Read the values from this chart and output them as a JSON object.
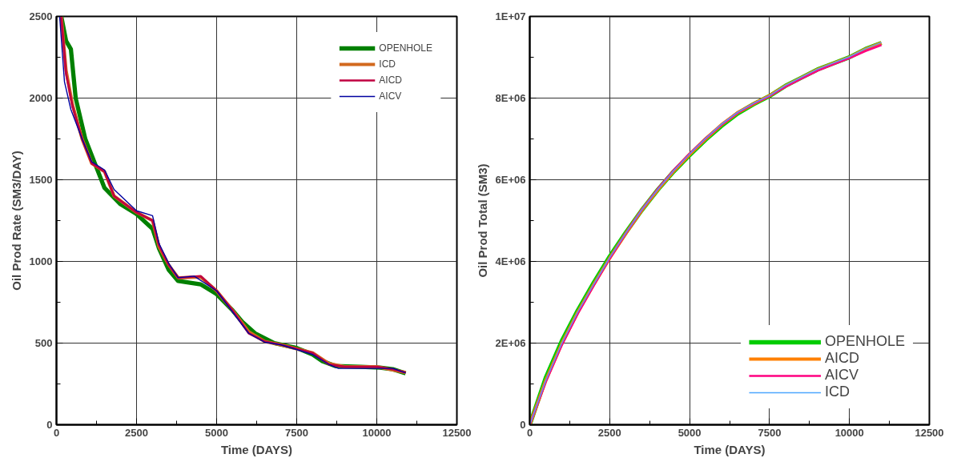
{
  "chart_data": [
    {
      "type": "line",
      "xlabel": "Time (DAYS)",
      "ylabel": "Oil Prod Rate (SM3/DAY)",
      "xlim": [
        0,
        12500
      ],
      "ylim": [
        0,
        2500
      ],
      "xticks": [
        0,
        2500,
        5000,
        7500,
        10000,
        12500
      ],
      "yticks": [
        0,
        500,
        1000,
        1500,
        2000,
        2500
      ],
      "grid": true,
      "legend": "top right",
      "line_style": "solid",
      "series": [
        {
          "name": "OPENHOLE",
          "color": "#008000",
          "x": [
            150,
            300,
            450,
            600,
            900,
            1200,
            1500,
            2000,
            2500,
            3000,
            3200,
            3500,
            3800,
            4500,
            5000,
            5500,
            5800,
            6200,
            6800,
            7500,
            8000,
            8300,
            8700,
            9500,
            10100,
            10500,
            10900
          ],
          "values": [
            2500,
            2350,
            2300,
            2000,
            1750,
            1600,
            1450,
            1350,
            1290,
            1200,
            1080,
            950,
            880,
            860,
            800,
            700,
            630,
            560,
            500,
            470,
            430,
            390,
            360,
            355,
            350,
            340,
            315
          ]
        },
        {
          "name": "ICD",
          "color": "#d2691e",
          "x": [
            150,
            300,
            500,
            800,
            1100,
            1500,
            1800,
            2500,
            3000,
            3200,
            3500,
            3800,
            4500,
            5000,
            5500,
            6000,
            6500,
            7000,
            8000,
            8500,
            9000,
            10000,
            10500,
            10900
          ],
          "values": [
            2500,
            2170,
            1960,
            1750,
            1600,
            1550,
            1400,
            1300,
            1250,
            1090,
            980,
            900,
            905,
            820,
            700,
            570,
            510,
            490,
            440,
            375,
            355,
            355,
            335,
            320
          ]
        },
        {
          "name": "AICD",
          "color": "#c00040",
          "x": [
            150,
            300,
            500,
            800,
            1100,
            1500,
            1800,
            2500,
            3000,
            3200,
            3500,
            3800,
            4500,
            5000,
            5500,
            6000,
            6500,
            7000,
            8000,
            8500,
            9000,
            10000,
            10500,
            10900
          ],
          "values": [
            2500,
            2150,
            1950,
            1750,
            1600,
            1550,
            1400,
            1300,
            1250,
            1100,
            980,
            900,
            910,
            820,
            700,
            560,
            510,
            490,
            440,
            370,
            355,
            355,
            340,
            320
          ]
        },
        {
          "name": "AICV",
          "color": "#0000a0",
          "x": [
            100,
            250,
            450,
            800,
            1100,
            1500,
            1800,
            2500,
            3000,
            3200,
            3500,
            3800,
            4300,
            5000,
            5500,
            6000,
            6500,
            7000,
            8000,
            8500,
            8800,
            10000,
            10500,
            10900
          ],
          "values": [
            2500,
            2100,
            1930,
            1750,
            1610,
            1560,
            1440,
            1310,
            1280,
            1110,
            990,
            900,
            910,
            820,
            690,
            560,
            505,
            490,
            430,
            370,
            345,
            345,
            345,
            318
          ]
        }
      ]
    },
    {
      "type": "line",
      "xlabel": "Time (DAYS)",
      "ylabel": "Oil Prod Total (SM3)",
      "xlim": [
        0,
        12500
      ],
      "ylim": [
        0,
        10000000
      ],
      "xticks": [
        0,
        2500,
        5000,
        7500,
        10000,
        12500
      ],
      "yticks": [
        0,
        {
          "value": 2000000,
          "label": "2E+06"
        },
        {
          "value": 4000000,
          "label": "4E+06"
        },
        {
          "value": 6000000,
          "label": "6E+06"
        },
        {
          "value": 8000000,
          "label": "8E+06"
        },
        {
          "value": 10000000,
          "label": "1E+07"
        }
      ],
      "grid": true,
      "legend": "bottom right",
      "line_style": "solid",
      "series": [
        {
          "name": "OPENHOLE",
          "color": "#00cc00",
          "x": [
            0,
            500,
            1000,
            1500,
            2000,
            2500,
            3000,
            3500,
            4000,
            4500,
            5000,
            5500,
            6000,
            6500,
            7000,
            7500,
            8000,
            8500,
            9000,
            9500,
            10000,
            10500,
            11000
          ],
          "values": [
            0,
            1150000,
            2050000,
            2800000,
            3480000,
            4120000,
            4700000,
            5250000,
            5750000,
            6200000,
            6600000,
            6980000,
            7320000,
            7620000,
            7850000,
            8050000,
            8300000,
            8500000,
            8700000,
            8850000,
            9000000,
            9200000,
            9350000
          ]
        },
        {
          "name": "AICD",
          "color": "#ff8000",
          "x": [
            0,
            500,
            1000,
            1500,
            2000,
            2500,
            3000,
            3500,
            4000,
            4500,
            5000,
            5500,
            6000,
            6500,
            7000,
            7500,
            8000,
            8500,
            9000,
            9500,
            10000,
            10500,
            11000
          ],
          "values": [
            0,
            1080000,
            1980000,
            2750000,
            3430000,
            4080000,
            4680000,
            5250000,
            5750000,
            6210000,
            6620000,
            7000000,
            7350000,
            7640000,
            7860000,
            8060000,
            8300000,
            8500000,
            8700000,
            8850000,
            9000000,
            9200000,
            9350000
          ]
        },
        {
          "name": "AICV",
          "color": "#ff0080",
          "x": [
            0,
            500,
            1000,
            1500,
            2000,
            2500,
            3000,
            3500,
            4000,
            4500,
            5000,
            5500,
            6000,
            6500,
            7000,
            7500,
            8000,
            8500,
            9000,
            9500,
            10000,
            10500,
            11000
          ],
          "values": [
            0,
            1050000,
            1950000,
            2720000,
            3410000,
            4070000,
            4680000,
            5260000,
            5770000,
            6230000,
            6640000,
            7010000,
            7350000,
            7640000,
            7860000,
            8050000,
            8280000,
            8480000,
            8670000,
            8830000,
            8980000,
            9150000,
            9300000
          ]
        },
        {
          "name": "ICD",
          "color": "#4da6ff",
          "x": [
            0,
            500,
            1000,
            1500,
            2000,
            2500,
            3000,
            3500,
            4000,
            4500,
            5000,
            5500,
            6000,
            6500,
            7000,
            7500,
            8000,
            8500,
            9000,
            9500,
            10000,
            10500,
            11000
          ],
          "values": [
            0,
            1080000,
            1990000,
            2760000,
            3440000,
            4090000,
            4690000,
            5260000,
            5760000,
            6220000,
            6630000,
            7010000,
            7360000,
            7650000,
            7870000,
            8060000,
            8310000,
            8510000,
            8710000,
            8860000,
            9010000,
            9210000,
            9360000
          ]
        }
      ]
    }
  ]
}
